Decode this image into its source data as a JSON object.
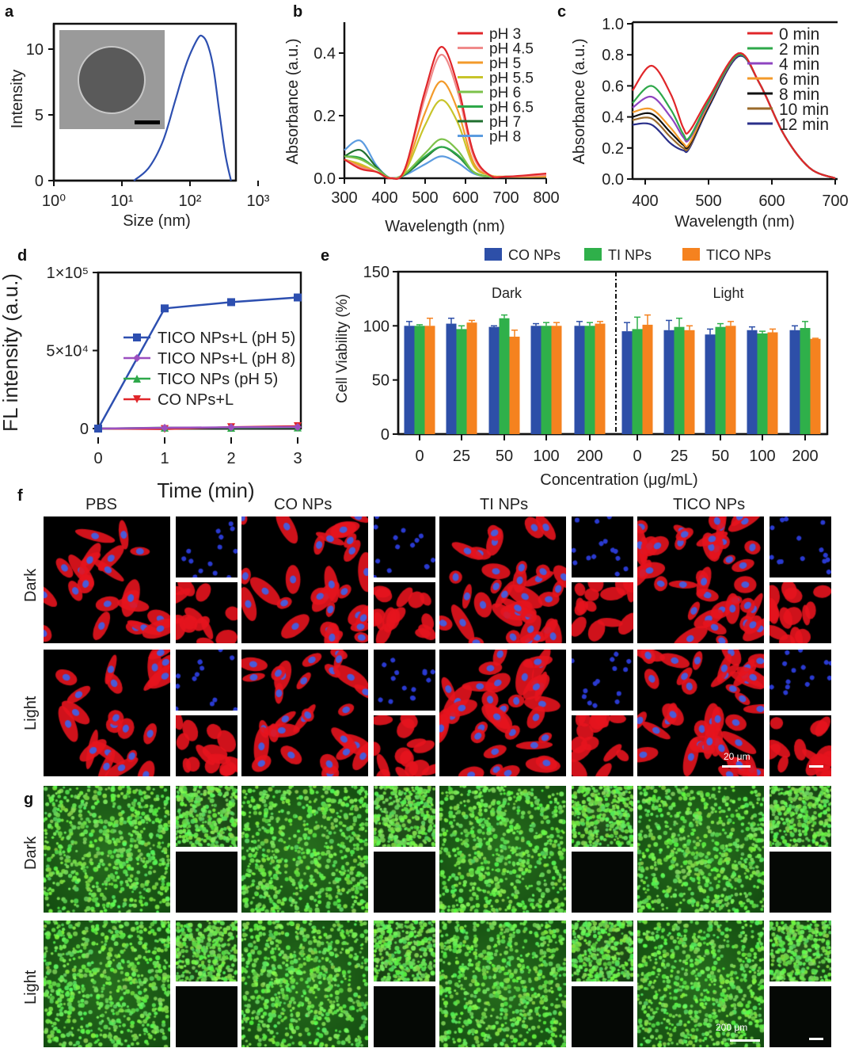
{
  "panel_labels": [
    "a",
    "b",
    "c",
    "d",
    "e",
    "f",
    "g"
  ],
  "chart_data": [
    {
      "panel": "a",
      "type": "line",
      "xlabel": "Size (nm)",
      "ylabel": "Intensity",
      "xscale": "log",
      "xlim": [
        1,
        1000
      ],
      "ylim": [
        0,
        12
      ],
      "xticks": [
        "10⁰",
        "10¹",
        "10²",
        "10³"
      ],
      "yticks": [
        "0",
        "5",
        "10"
      ],
      "color": "#2d4fb0",
      "x": [
        15,
        25,
        40,
        60,
        80,
        100,
        130,
        150,
        180,
        220,
        270,
        330,
        400
      ],
      "y": [
        0,
        1,
        3,
        6,
        8.2,
        9.6,
        10.8,
        11,
        10.4,
        8.6,
        5.2,
        2,
        0
      ],
      "inset": "TEM image with scale bar"
    },
    {
      "panel": "b",
      "type": "line",
      "xlabel": "Wavelength (nm)",
      "ylabel": "Absorbance (a.u.)",
      "xlim": [
        300,
        800
      ],
      "ylim": [
        0,
        0.5
      ],
      "xticks": [
        "300",
        "400",
        "500",
        "600",
        "700",
        "800"
      ],
      "yticks": [
        "0.0",
        "0.2",
        "0.4"
      ],
      "x": [
        300,
        340,
        380,
        415,
        450,
        500,
        540,
        580,
        620,
        660,
        700,
        800
      ],
      "series": [
        {
          "name": "pH 3",
          "color": "#e0262a",
          "values": [
            0.06,
            0.03,
            0.02,
            0,
            0.03,
            0.28,
            0.42,
            0.3,
            0.08,
            0.01,
            0.005,
            0.015
          ]
        },
        {
          "name": "pH 4.5",
          "color": "#f08a8a",
          "values": [
            0.06,
            0.035,
            0.02,
            0,
            0.03,
            0.26,
            0.395,
            0.28,
            0.07,
            0.01,
            0.005,
            0.01
          ]
        },
        {
          "name": "pH 5",
          "color": "#f39a2a",
          "values": [
            0.06,
            0.04,
            0.02,
            0,
            0.025,
            0.21,
            0.31,
            0.22,
            0.05,
            0.01,
            0.005,
            0.005
          ]
        },
        {
          "name": "pH 5.5",
          "color": "#c8c42a",
          "values": [
            0.06,
            0.045,
            0.02,
            0,
            0.02,
            0.17,
            0.25,
            0.18,
            0.04,
            0.01,
            0.005,
            0.005
          ]
        },
        {
          "name": "pH 6",
          "color": "#7cc24a",
          "values": [
            0.07,
            0.06,
            0.03,
            0,
            0.015,
            0.08,
            0.125,
            0.09,
            0.02,
            0.005,
            0.005,
            0.005
          ]
        },
        {
          "name": "pH 6.5",
          "color": "#2ea84a",
          "values": [
            0.07,
            0.065,
            0.03,
            0,
            0.015,
            0.07,
            0.1,
            0.075,
            0.02,
            0.005,
            0.005,
            0.005
          ]
        },
        {
          "name": "pH 7",
          "color": "#1f6f2f",
          "values": [
            0.07,
            0.09,
            0.035,
            0,
            0.012,
            0.065,
            0.1,
            0.072,
            0.02,
            0.005,
            0.005,
            0.005
          ]
        },
        {
          "name": "pH 8",
          "color": "#5b9be0",
          "values": [
            0.09,
            0.12,
            0.04,
            0,
            0.01,
            0.045,
            0.07,
            0.05,
            0.015,
            0.005,
            0.005,
            0.005
          ]
        }
      ]
    },
    {
      "panel": "c",
      "type": "line",
      "xlabel": "Wavelength (nm)",
      "ylabel": "Absorbance (a.u.)",
      "xlim": [
        380,
        700
      ],
      "ylim": [
        0,
        1
      ],
      "xticks": [
        "400",
        "500",
        "600",
        "700"
      ],
      "yticks": [
        "0.0",
        "0.2",
        "0.4",
        "0.6",
        "0.8",
        "1.0"
      ],
      "x": [
        380,
        410,
        440,
        460,
        470,
        500,
        547,
        580,
        620,
        660,
        700
      ],
      "series": [
        {
          "name": "0 min",
          "color": "#e0262a",
          "values": [
            0.57,
            0.73,
            0.55,
            0.33,
            0.31,
            0.52,
            0.81,
            0.62,
            0.28,
            0.07,
            0.005
          ]
        },
        {
          "name": "2 min",
          "color": "#2ea84a",
          "values": [
            0.49,
            0.6,
            0.45,
            0.29,
            0.27,
            0.5,
            0.8,
            0.62,
            0.28,
            0.07,
            0.005
          ]
        },
        {
          "name": "4 min",
          "color": "#8e44c0",
          "values": [
            0.46,
            0.53,
            0.4,
            0.27,
            0.26,
            0.49,
            0.8,
            0.62,
            0.28,
            0.07,
            0.005
          ]
        },
        {
          "name": "6 min",
          "color": "#f39a2a",
          "values": [
            0.43,
            0.45,
            0.33,
            0.23,
            0.23,
            0.48,
            0.8,
            0.62,
            0.28,
            0.07,
            0.005
          ]
        },
        {
          "name": "8 min",
          "color": "#111111",
          "values": [
            0.4,
            0.42,
            0.3,
            0.22,
            0.22,
            0.47,
            0.8,
            0.62,
            0.28,
            0.07,
            0.005
          ]
        },
        {
          "name": "10 min",
          "color": "#9a6a2a",
          "values": [
            0.38,
            0.39,
            0.27,
            0.2,
            0.21,
            0.47,
            0.8,
            0.62,
            0.28,
            0.07,
            0.005
          ]
        },
        {
          "name": "12 min",
          "color": "#2a2f8a",
          "values": [
            0.35,
            0.35,
            0.23,
            0.185,
            0.2,
            0.46,
            0.79,
            0.62,
            0.28,
            0.07,
            0.005
          ]
        }
      ]
    },
    {
      "panel": "d",
      "type": "line",
      "xlabel": "Time (min)",
      "ylabel": "FL intensity (a.u.)",
      "xlim": [
        0,
        3
      ],
      "ylim": [
        0,
        100000
      ],
      "xticks": [
        "0",
        "1",
        "2",
        "3"
      ],
      "yticks": [
        "0",
        "5×10⁴",
        "1×10⁵"
      ],
      "x": [
        0,
        1,
        2,
        3
      ],
      "series": [
        {
          "name": "TICO NPs+L (pH 5)",
          "color": "#2d4fb0",
          "marker": "square",
          "values": [
            0,
            77000,
            81000,
            84000
          ]
        },
        {
          "name": "TICO NPs+L (pH 8)",
          "color": "#9b4fc0",
          "marker": "diamond",
          "values": [
            0,
            500,
            800,
            1000
          ]
        },
        {
          "name": "TICO NPs (pH 5)",
          "color": "#2ea84a",
          "marker": "triangle-up",
          "values": [
            0,
            600,
            500,
            700
          ]
        },
        {
          "name": "CO NPs+L",
          "color": "#e0262a",
          "marker": "triangle-down",
          "values": [
            0,
            -300,
            900,
            1500
          ]
        }
      ]
    },
    {
      "panel": "e",
      "type": "bar",
      "xlabel": "Concentration (μg/mL)",
      "ylabel": "Cell Viability (%)",
      "ylim": [
        0,
        150
      ],
      "yticks": [
        "0",
        "50",
        "100",
        "150"
      ],
      "groups": [
        "Dark",
        "Light"
      ],
      "categories": [
        "0",
        "25",
        "50",
        "100",
        "200",
        "0",
        "25",
        "50",
        "100",
        "200"
      ],
      "series": [
        {
          "name": "CO NPs",
          "color": "#2d4fa8",
          "values": [
            100,
            102,
            99,
            100,
            100,
            95,
            96,
            92,
            96,
            96
          ],
          "errors": [
            4,
            5,
            1,
            2,
            4,
            8,
            9,
            5,
            3,
            4
          ]
        },
        {
          "name": "TI NPs",
          "color": "#2fb04a",
          "values": [
            100,
            97,
            107,
            100,
            100,
            97,
            99,
            99,
            93,
            98
          ],
          "errors": [
            1,
            3,
            3,
            3,
            3,
            11,
            8,
            3,
            2,
            6
          ]
        },
        {
          "name": "TICO NPs",
          "color": "#f5821f",
          "values": [
            100,
            103,
            90,
            100,
            102,
            101,
            96,
            100,
            94,
            88
          ],
          "errors": [
            7,
            2,
            6,
            3,
            2,
            9,
            4,
            4,
            3,
            0.5
          ]
        }
      ]
    }
  ],
  "micrographs": {
    "f": {
      "columns": [
        "PBS",
        "CO NPs",
        "TI NPs",
        "TICO NPs"
      ],
      "rows": [
        "Dark",
        "Light"
      ],
      "scale_bar": "20 μm"
    },
    "g": {
      "rows": [
        "Dark",
        "Light"
      ],
      "scale_bar": "200 μm"
    }
  }
}
